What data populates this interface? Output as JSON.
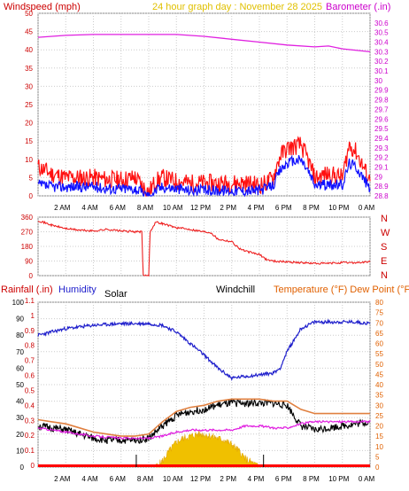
{
  "colors": {
    "wind_avg": "#1010ff",
    "wind_gust": "#ff1010",
    "barometer": "#e020e0",
    "direction": "#ee2020",
    "humidity": "#2020cc",
    "temperature": "#e08040",
    "dew_point": "#e020e0",
    "windchill": "#000000",
    "solar": "#f0c000",
    "rainfall": "#ff0000",
    "title": "#e0c000"
  },
  "chart_data": [
    {
      "type": "line",
      "title": "24 hour graph day : November 28 2025",
      "ylabel": "Windspeed (mph)",
      "y2label": "Barometer (.in)",
      "ylim": [
        0,
        50
      ],
      "y_ticks": [
        "0",
        "5",
        "10",
        "15",
        "20",
        "25",
        "30",
        "35",
        "40",
        "45",
        "50"
      ],
      "y2lim": [
        28.8,
        30.7
      ],
      "y2_ticks": [
        "28.8",
        "28.9",
        "29",
        "29.1",
        "29.2",
        "29.3",
        "29.4",
        "29.5",
        "29.6",
        "29.7",
        "29.8",
        "29.9",
        "30",
        "30.1",
        "30.2",
        "30.3",
        "30.4",
        "30.5",
        "30.6"
      ],
      "x_ticks": [
        "2 AM",
        "4 AM",
        "6 AM",
        "8 AM",
        "10 AM",
        "12 PM",
        "2 PM",
        "4 PM",
        "6 PM",
        "8 PM",
        "10 PM",
        "0 AM"
      ],
      "grid": true,
      "series": [
        {
          "name": "Barometer",
          "axis": "right",
          "x": [
            0,
            2,
            4,
            6,
            8,
            10,
            12,
            14,
            16,
            18,
            20,
            21,
            22,
            24
          ],
          "values": [
            30.45,
            30.47,
            30.48,
            30.48,
            30.48,
            30.48,
            30.46,
            30.43,
            30.4,
            30.37,
            30.35,
            30.36,
            30.33,
            30.3
          ]
        },
        {
          "name": "Windspeed gust",
          "axis": "left",
          "x": [
            0,
            1,
            2,
            3,
            4,
            5,
            6,
            7,
            7.5,
            8,
            8.5,
            9,
            10,
            11,
            12,
            13,
            14,
            15,
            16,
            16.5,
            17,
            17.5,
            18,
            19,
            19.5,
            20,
            21,
            22,
            22.5,
            23,
            24
          ],
          "values": [
            8,
            6,
            5,
            5,
            5,
            4.5,
            4.5,
            5,
            3,
            1,
            4,
            5,
            4,
            3.5,
            3.5,
            3.5,
            3.5,
            3.5,
            3,
            3.5,
            5,
            11,
            13,
            14,
            10,
            5,
            6,
            5,
            14,
            12,
            4
          ]
        },
        {
          "name": "Windspeed avg",
          "axis": "left",
          "x": [
            0,
            1,
            2,
            3,
            4,
            5,
            6,
            7,
            7.5,
            8,
            8.5,
            9,
            10,
            11,
            12,
            13,
            14,
            15,
            16,
            16.5,
            17,
            17.5,
            18,
            19,
            19.5,
            20,
            21,
            22,
            22.5,
            23,
            24
          ],
          "values": [
            3,
            2.5,
            2.5,
            2.5,
            2.5,
            2,
            2,
            2,
            1,
            0,
            1.5,
            2.5,
            2,
            1.5,
            1.5,
            1.5,
            1.5,
            1.5,
            1.5,
            2,
            3,
            7,
            9,
            10,
            7,
            3,
            3,
            3,
            9,
            8,
            2
          ]
        }
      ]
    },
    {
      "type": "line",
      "ylabel": "Wind direction",
      "y_ticks": [
        "0",
        "90",
        "180",
        "270",
        "360"
      ],
      "ylim": [
        0,
        360
      ],
      "compass_labels": [
        "N",
        "W",
        "S",
        "E",
        "N"
      ],
      "x_ticks": [
        "2 AM",
        "4 AM",
        "6 AM",
        "8 AM",
        "10 AM",
        "12 PM",
        "2 PM",
        "4 PM",
        "6 PM",
        "8 PM",
        "10 PM",
        "0 AM"
      ],
      "series": [
        {
          "name": "Direction",
          "x": [
            0,
            1,
            2,
            3,
            4,
            5,
            6,
            7,
            7.5,
            7.6,
            8,
            8.1,
            8.5,
            9,
            10,
            11,
            12,
            12.5,
            13,
            14,
            14.5,
            15,
            16,
            16.5,
            17,
            18,
            19,
            20,
            21,
            22,
            23,
            24
          ],
          "values": [
            340,
            310,
            290,
            280,
            275,
            285,
            275,
            270,
            270,
            0,
            0,
            270,
            330,
            320,
            295,
            285,
            270,
            265,
            225,
            210,
            170,
            150,
            130,
            100,
            90,
            85,
            80,
            75,
            75,
            80,
            80,
            85
          ]
        }
      ]
    },
    {
      "type": "line",
      "ylabel": "Humidity",
      "y2label": "Temperature (°F) Dew Point (°F)",
      "y3label": "Rainfall (.in)",
      "solar_label": "Solar",
      "windchill_label": "Windchill",
      "ylim": [
        0,
        100
      ],
      "y_ticks": [
        "0",
        "10",
        "20",
        "30",
        "40",
        "50",
        "60",
        "70",
        "80",
        "90",
        "100"
      ],
      "rain_ticks": [
        "0",
        "0.1",
        "0.2",
        "0.3",
        "0.4",
        "0.5",
        "0.6",
        "0.7",
        "0.8",
        "0.9",
        "1",
        "1.1"
      ],
      "y2lim": [
        0,
        80
      ],
      "y2_ticks": [
        "0",
        "5",
        "10",
        "15",
        "20",
        "25",
        "30",
        "35",
        "40",
        "45",
        "50",
        "55",
        "60",
        "65",
        "70",
        "75",
        "80"
      ],
      "x_ticks": [
        "2 AM",
        "4 AM",
        "6 AM",
        "8 AM",
        "10 AM",
        "12 PM",
        "2 PM",
        "4 PM",
        "6 PM",
        "8 PM",
        "10 PM",
        "0 AM"
      ],
      "series": [
        {
          "name": "Humidity",
          "axis": "left",
          "x": [
            0,
            1,
            2,
            4,
            6,
            8,
            9,
            10,
            11,
            12,
            13,
            14,
            15,
            16,
            17,
            17.5,
            18,
            19,
            20,
            21,
            22,
            23,
            24
          ],
          "values": [
            80,
            82,
            84,
            86,
            87,
            87,
            86,
            82,
            75,
            68,
            60,
            54,
            55,
            56,
            57,
            60,
            70,
            84,
            88,
            88,
            88,
            88,
            87
          ]
        },
        {
          "name": "Temperature",
          "axis": "right",
          "x": [
            0,
            1,
            2,
            3,
            4,
            5,
            6,
            7,
            8,
            9,
            10,
            11,
            12,
            13,
            14,
            15,
            16,
            17,
            18,
            19,
            20,
            21,
            22,
            23,
            24
          ],
          "values": [
            23,
            22,
            21,
            19,
            17,
            16,
            15,
            15,
            16,
            22,
            27,
            29,
            30,
            32,
            33,
            33,
            33,
            32,
            32,
            28,
            26,
            26,
            26,
            26,
            26
          ]
        },
        {
          "name": "Windchill",
          "axis": "right",
          "x": [
            0,
            1,
            2,
            3,
            4,
            5,
            6,
            7,
            8,
            9,
            10,
            11,
            12,
            13,
            14,
            15,
            16,
            17,
            18,
            19,
            20,
            21,
            22,
            23,
            24
          ],
          "values": [
            20,
            19,
            18,
            16,
            14,
            13,
            13,
            13,
            14,
            20,
            25,
            27,
            28,
            30,
            31,
            31,
            31,
            31,
            30,
            20,
            18,
            19,
            20,
            21,
            22
          ]
        },
        {
          "name": "Dew Point",
          "axis": "right",
          "x": [
            0,
            2,
            4,
            6,
            8,
            9,
            10,
            11,
            12,
            13,
            14,
            15,
            16,
            17,
            18,
            19,
            20,
            22,
            24
          ],
          "values": [
            19,
            17,
            15,
            14,
            14,
            15,
            17,
            18,
            18,
            18,
            18,
            20,
            20,
            19,
            19,
            21,
            22,
            22,
            22
          ]
        },
        {
          "name": "Solar",
          "axis": "right",
          "x": [
            8.5,
            9,
            9.5,
            10,
            10.5,
            11,
            11.5,
            12,
            12.5,
            13,
            13.5,
            14,
            14.5,
            15,
            15.5,
            16
          ],
          "values": [
            0,
            3,
            8,
            12,
            14,
            15,
            16,
            16,
            15,
            14,
            13,
            11,
            8,
            4,
            2,
            0
          ]
        },
        {
          "name": "Rainfall",
          "axis": "rain",
          "x": [
            0,
            24
          ],
          "values": [
            0,
            0
          ]
        }
      ]
    }
  ]
}
